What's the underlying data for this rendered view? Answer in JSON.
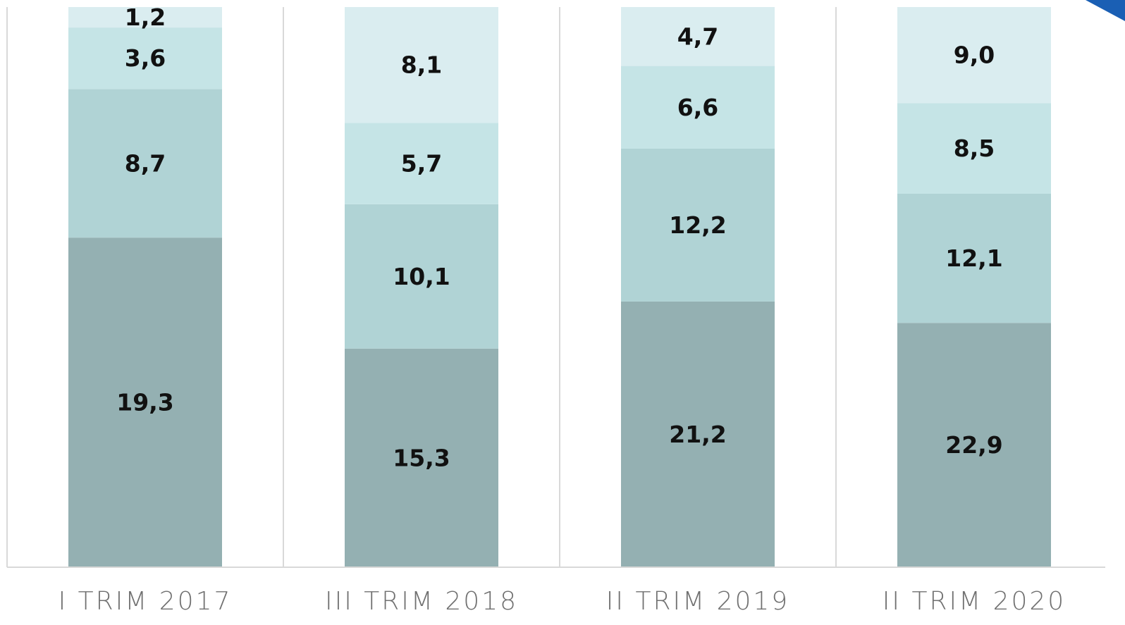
{
  "chart_data": {
    "type": "bar",
    "stacking": "percent",
    "categories": [
      "I TRIM 2017",
      "III TRIM 2018",
      "II TRIM 2019",
      "II TRIM 2020"
    ],
    "series": [
      {
        "color": "#94b0b2",
        "values": [
          19.3,
          15.3,
          21.2,
          22.9
        ],
        "value_labels": [
          "19,3",
          "15,3",
          "21,2",
          "22,9"
        ]
      },
      {
        "color": "#b0d3d5",
        "values": [
          8.7,
          10.1,
          12.2,
          12.1
        ],
        "value_labels": [
          "8,7",
          "10,1",
          "12,2",
          "12,1"
        ]
      },
      {
        "color": "#c5e4e6",
        "values": [
          3.6,
          5.7,
          6.6,
          8.5
        ],
        "value_labels": [
          "3,6",
          "5,7",
          "6,6",
          "8,5"
        ]
      },
      {
        "color": "#daedf0",
        "values": [
          1.2,
          8.1,
          4.7,
          9.0
        ],
        "value_labels": [
          "1,2",
          "8,1",
          "4,7",
          "9,0"
        ]
      }
    ]
  }
}
